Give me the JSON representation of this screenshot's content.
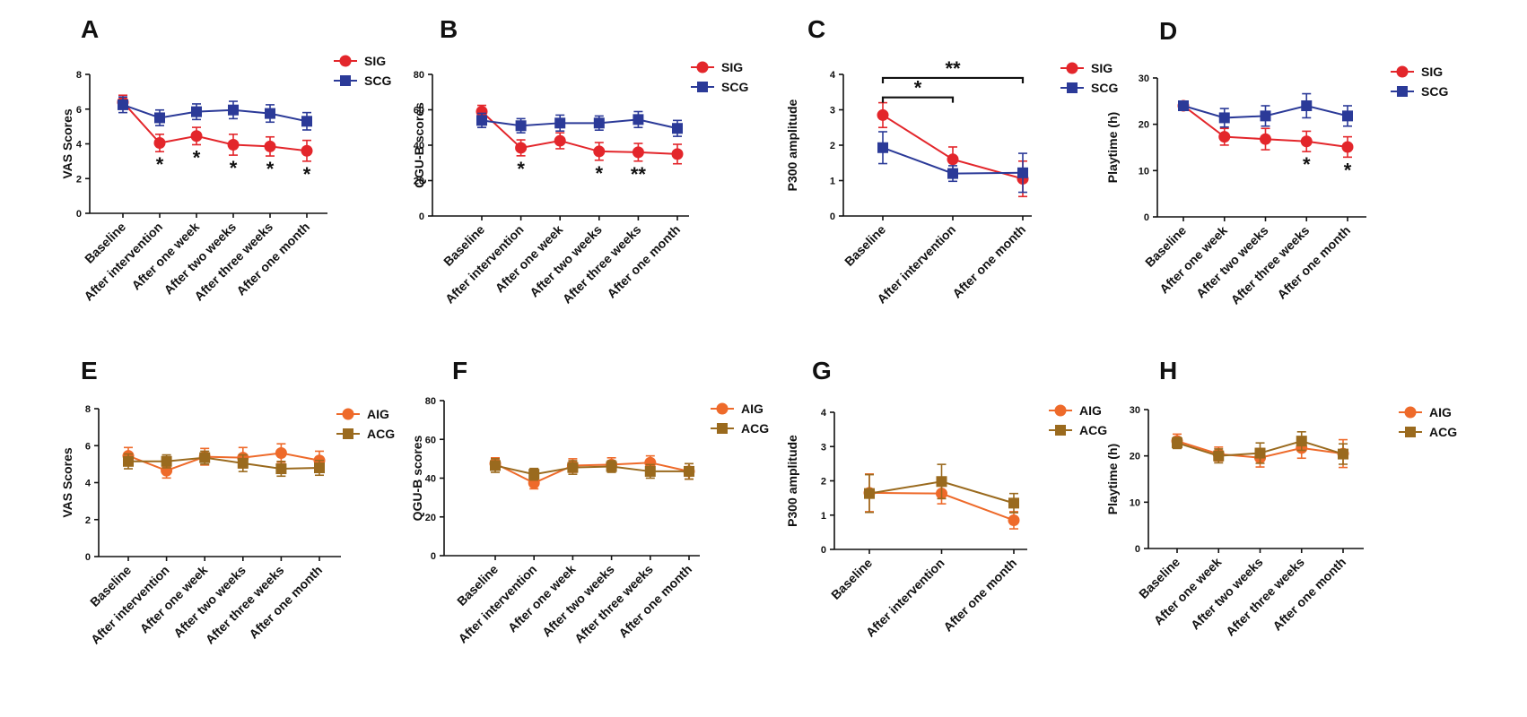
{
  "chart_data": [
    {
      "panel": "A",
      "type": "line",
      "categories": [
        "Baseline",
        "After intervention",
        "After one week",
        "After two weeks",
        "After three weeks",
        "After one month"
      ],
      "ylabel": "VAS Scores",
      "ylim": [
        0,
        8
      ],
      "yticks": [
        0,
        2,
        4,
        6,
        8
      ],
      "series": [
        {
          "name": "SIG",
          "color": "#e3262b",
          "marker": "circle",
          "values": [
            6.4,
            4.05,
            4.45,
            3.95,
            3.85,
            3.6
          ],
          "errors": [
            0.4,
            0.5,
            0.5,
            0.6,
            0.55,
            0.6
          ]
        },
        {
          "name": "SCG",
          "color": "#2b3a98",
          "marker": "square",
          "values": [
            6.25,
            5.5,
            5.85,
            5.95,
            5.75,
            5.3
          ],
          "errors": [
            0.45,
            0.45,
            0.45,
            0.5,
            0.5,
            0.5
          ]
        }
      ],
      "annotations": [
        {
          "index": 1,
          "text": "*"
        },
        {
          "index": 2,
          "text": "*"
        },
        {
          "index": 3,
          "text": "*"
        },
        {
          "index": 4,
          "text": "*"
        },
        {
          "index": 5,
          "text": "*"
        }
      ],
      "brackets": []
    },
    {
      "panel": "B",
      "type": "line",
      "categories": [
        "Baseline",
        "After intervention",
        "After one week",
        "After two weeks",
        "After three weeks",
        "After one month"
      ],
      "ylabel": "QGU-B scores",
      "ylim": [
        0,
        80
      ],
      "yticks": [
        0,
        20,
        40,
        60,
        80
      ],
      "series": [
        {
          "name": "SIG",
          "color": "#e3262b",
          "marker": "circle",
          "values": [
            59,
            38.5,
            42.5,
            36.5,
            36,
            35
          ],
          "errors": [
            3.5,
            4.5,
            4.5,
            5,
            5,
            5.5
          ]
        },
        {
          "name": "SCG",
          "color": "#2b3a98",
          "marker": "square",
          "values": [
            54,
            51,
            52.5,
            52.5,
            54.5,
            49.5
          ],
          "errors": [
            4,
            4,
            4.5,
            4,
            4.5,
            4.5
          ]
        }
      ],
      "annotations": [
        {
          "index": 1,
          "text": "*"
        },
        {
          "index": 3,
          "text": "*"
        },
        {
          "index": 4,
          "text": "**"
        }
      ],
      "brackets": []
    },
    {
      "panel": "C",
      "type": "line",
      "categories": [
        "Baseline",
        "After intervention",
        "After one month"
      ],
      "ylabel": "P300 amplitude",
      "ylim": [
        0,
        4
      ],
      "yticks": [
        0,
        1,
        2,
        3,
        4
      ],
      "series": [
        {
          "name": "SIG",
          "color": "#e3262b",
          "marker": "circle",
          "values": [
            2.85,
            1.6,
            1.05
          ],
          "errors": [
            0.35,
            0.35,
            0.5
          ]
        },
        {
          "name": "SCG",
          "color": "#2b3a98",
          "marker": "square",
          "values": [
            1.93,
            1.2,
            1.22
          ],
          "errors": [
            0.45,
            0.22,
            0.55
          ]
        }
      ],
      "annotations": [],
      "brackets": [
        {
          "from": 0,
          "to": 1,
          "level": 3.35,
          "text": "*"
        },
        {
          "from": 0,
          "to": 2,
          "level": 3.9,
          "text": "**"
        }
      ]
    },
    {
      "panel": "D",
      "type": "line",
      "categories": [
        "Baseline",
        "After one week",
        "After two weeks",
        "After three weeks",
        "After one month"
      ],
      "ylabel": "Playtime (h)",
      "ylim": [
        0,
        30
      ],
      "yticks": [
        0,
        10,
        20,
        30
      ],
      "series": [
        {
          "name": "SIG",
          "color": "#e3262b",
          "marker": "circle",
          "values": [
            24,
            17.3,
            16.8,
            16.3,
            15.1
          ],
          "errors": [
            1,
            1.8,
            2.3,
            2.2,
            2.2
          ]
        },
        {
          "name": "SCG",
          "color": "#2b3a98",
          "marker": "square",
          "values": [
            24,
            21.4,
            21.8,
            24,
            21.8
          ],
          "errors": [
            1,
            2,
            2.2,
            2.6,
            2.2
          ]
        }
      ],
      "annotations": [
        {
          "index": 3,
          "text": "*"
        },
        {
          "index": 4,
          "text": "*"
        }
      ],
      "brackets": []
    },
    {
      "panel": "E",
      "type": "line",
      "categories": [
        "Baseline",
        "After intervention",
        "After one week",
        "After two weeks",
        "After three weeks",
        "After one month"
      ],
      "ylabel": "VAS Scores",
      "ylim": [
        0,
        8
      ],
      "yticks": [
        0,
        2,
        4,
        6,
        8
      ],
      "series": [
        {
          "name": "AIG",
          "color": "#ee6a2a",
          "marker": "circle",
          "values": [
            5.45,
            4.65,
            5.4,
            5.35,
            5.6,
            5.2
          ],
          "errors": [
            0.45,
            0.4,
            0.45,
            0.55,
            0.5,
            0.5
          ]
        },
        {
          "name": "ACG",
          "color": "#9a6a1e",
          "marker": "square",
          "values": [
            5.15,
            5.15,
            5.35,
            5.05,
            4.75,
            4.8
          ],
          "errors": [
            0.4,
            0.35,
            0.35,
            0.45,
            0.4,
            0.4
          ]
        }
      ],
      "annotations": [],
      "brackets": []
    },
    {
      "panel": "F",
      "type": "line",
      "categories": [
        "Baseline",
        "After intervention",
        "After one week",
        "After two weeks",
        "After three weeks",
        "After one month"
      ],
      "ylabel": "QGU-B scores",
      "ylim": [
        0,
        80
      ],
      "yticks": [
        0,
        20,
        40,
        60,
        80
      ],
      "series": [
        {
          "name": "AIG",
          "color": "#ee6a2a",
          "marker": "circle",
          "values": [
            47.5,
            37.5,
            46.5,
            47,
            48,
            43.5
          ],
          "errors": [
            3,
            3,
            3.5,
            3.5,
            3.5,
            4
          ]
        },
        {
          "name": "ACG",
          "color": "#9a6a1e",
          "marker": "square",
          "values": [
            46.5,
            42,
            45.5,
            46,
            43.5,
            43.5
          ],
          "errors": [
            3.5,
            3,
            3.5,
            3,
            3.5,
            4
          ]
        }
      ],
      "annotations": [],
      "brackets": []
    },
    {
      "panel": "G",
      "type": "line",
      "categories": [
        "Baseline",
        "After intervention",
        "After one month"
      ],
      "ylabel": "P300 amplitude",
      "ylim": [
        0,
        4
      ],
      "yticks": [
        0,
        1,
        2,
        3,
        4
      ],
      "series": [
        {
          "name": "AIG",
          "color": "#ee6a2a",
          "marker": "circle",
          "values": [
            1.65,
            1.63,
            0.85
          ],
          "errors": [
            0.55,
            0.3,
            0.25
          ]
        },
        {
          "name": "ACG",
          "color": "#9a6a1e",
          "marker": "square",
          "values": [
            1.63,
            1.98,
            1.35
          ],
          "errors": [
            0.55,
            0.5,
            0.28
          ]
        }
      ],
      "annotations": [],
      "brackets": []
    },
    {
      "panel": "H",
      "type": "line",
      "categories": [
        "Baseline",
        "After one week",
        "After two weeks",
        "After three weeks",
        "After one month"
      ],
      "ylabel": "Playtime (h)",
      "ylim": [
        0,
        30
      ],
      "yticks": [
        0,
        10,
        20,
        30
      ],
      "series": [
        {
          "name": "AIG",
          "color": "#ee6a2a",
          "marker": "circle",
          "values": [
            23.2,
            20.4,
            19.6,
            21.7,
            20.5
          ],
          "errors": [
            1.5,
            1.5,
            2,
            2.2,
            3
          ]
        },
        {
          "name": "ACG",
          "color": "#9a6a1e",
          "marker": "square",
          "values": [
            22.8,
            20,
            20.6,
            23.2,
            20.4
          ],
          "errors": [
            1.2,
            1.5,
            2.2,
            2,
            2.2
          ]
        }
      ],
      "annotations": [],
      "brackets": []
    }
  ]
}
